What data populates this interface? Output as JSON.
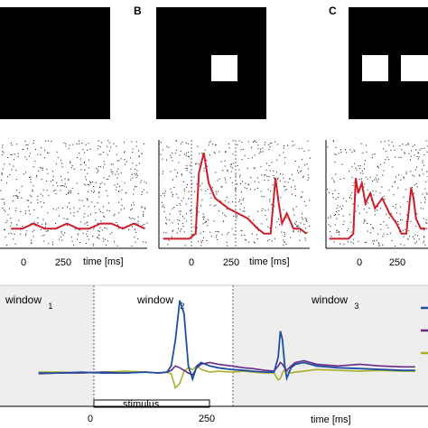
{
  "panel_labels": [
    "B",
    "C"
  ],
  "colors": {
    "background": "#ffffff",
    "stimulus_black": "#000000",
    "window_shade": "#eeeeee",
    "psth_red": "#cc1f2a",
    "blue": "#1f4fa0",
    "purple": "#6a2a88",
    "olive": "#a8b02a"
  },
  "raster_axes": {
    "tick_labels": [
      "0",
      "250"
    ],
    "xlabel": "time [ms]"
  },
  "bottom_panel": {
    "windows": [
      {
        "word": "window",
        "sub": "1"
      },
      {
        "word": "window",
        "sub": "2"
      },
      {
        "word": "window",
        "sub": "3"
      }
    ],
    "stimulus_label": "stimulus",
    "tick_labels": [
      "0",
      "250"
    ],
    "xlabel": "time [ms]"
  },
  "chart_data": [
    {
      "type": "line",
      "panel": "A",
      "x": [
        -300,
        -250,
        -200,
        -150,
        -100,
        -50,
        0,
        50,
        100,
        150,
        200,
        250,
        300
      ],
      "series": [
        {
          "values": [
            3,
            3,
            4,
            3,
            3,
            4,
            3,
            3,
            4,
            4,
            3,
            4,
            3
          ]
        }
      ],
      "xlabel": "time [ms]",
      "xticks": [
        0,
        250
      ],
      "xlim": [
        -350,
        310
      ]
    },
    {
      "type": "line",
      "panel": "B",
      "x": [
        -100,
        -50,
        -20,
        0,
        10,
        25,
        40,
        60,
        80,
        100,
        130,
        160,
        190,
        210,
        230,
        245,
        255,
        265,
        280,
        300,
        320,
        340
      ],
      "series": [
        {
          "values": [
            1,
            1,
            1,
            2,
            14,
            18,
            12,
            9,
            8,
            7,
            6,
            5,
            3,
            2,
            2,
            13,
            8,
            4,
            6,
            3,
            3,
            2
          ]
        }
      ],
      "xlabel": "time [ms]",
      "xticks": [
        0,
        250
      ],
      "xlim": [
        -110,
        350
      ]
    },
    {
      "type": "line",
      "panel": "C",
      "x": [
        -100,
        -50,
        -20,
        0,
        10,
        20,
        35,
        50,
        70,
        90,
        120,
        150,
        180,
        200,
        220,
        240,
        250,
        260,
        280,
        300
      ],
      "series": [
        {
          "values": [
            1,
            1,
            1,
            2,
            13,
            10,
            12,
            8,
            10,
            7,
            9,
            6,
            4,
            2,
            2,
            11,
            9,
            5,
            3,
            3
          ]
        }
      ],
      "xlabel": "time [ms]",
      "xticks": [
        0,
        250
      ],
      "xlim": [
        -110,
        310
      ]
    },
    {
      "type": "line",
      "panel": "bottom",
      "x": [
        -300,
        -250,
        -200,
        -150,
        -100,
        -50,
        -20,
        0,
        10,
        20,
        30,
        40,
        50,
        60,
        70,
        80,
        100,
        120,
        150,
        180,
        200,
        230,
        250,
        260,
        265,
        270,
        275,
        280,
        290,
        300,
        320,
        350,
        400,
        450,
        500,
        550,
        580
      ],
      "series": [
        {
          "values": [
            2,
            2,
            3,
            2,
            2,
            3,
            2,
            3,
            10,
            40,
            85,
            70,
            10,
            -5,
            10,
            14,
            10,
            8,
            6,
            5,
            4,
            3,
            3,
            20,
            50,
            40,
            12,
            -4,
            8,
            12,
            14,
            10,
            8,
            7,
            6,
            5,
            5
          ]
        },
        {
          "values": [
            1,
            2,
            2,
            3,
            2,
            3,
            2,
            3,
            5,
            10,
            8,
            5,
            2,
            0,
            8,
            12,
            14,
            12,
            10,
            8,
            7,
            5,
            4,
            10,
            14,
            12,
            8,
            5,
            10,
            14,
            16,
            12,
            10,
            12,
            10,
            9,
            9
          ]
        },
        {
          "values": [
            3,
            3,
            2,
            3,
            4,
            3,
            2,
            3,
            1,
            -15,
            -10,
            4,
            8,
            6,
            10,
            6,
            3,
            4,
            3,
            4,
            3,
            2,
            2,
            -6,
            -4,
            2,
            6,
            4,
            2,
            3,
            4,
            6,
            5,
            4,
            5,
            4,
            4
          ]
        }
      ],
      "xlabel": "time [ms]",
      "xticks": [
        0,
        250
      ],
      "xlim": [
        -390,
        610
      ]
    }
  ]
}
